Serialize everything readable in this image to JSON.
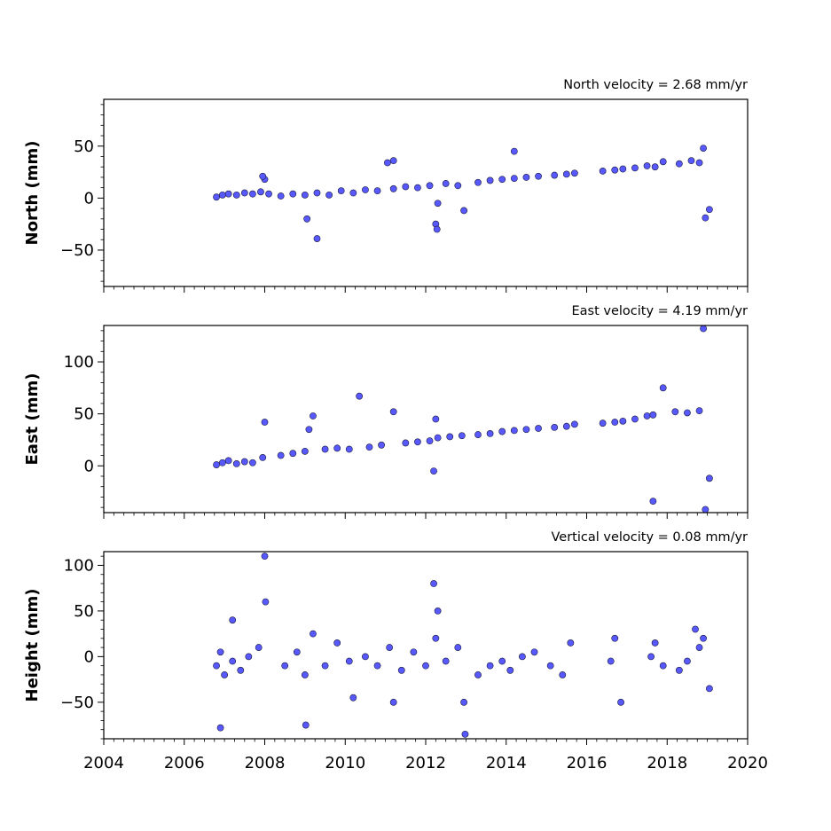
{
  "chart_data": [
    {
      "type": "scatter",
      "title": "North velocity = 2.68 mm/yr",
      "ylabel": "North (mm)",
      "xlim": [
        2004,
        2020
      ],
      "ylim": [
        -85,
        95
      ],
      "yticks": [
        -50,
        0,
        50
      ],
      "ytick_labels": [
        "−50",
        "0",
        "50"
      ],
      "point_color": "#5858ff",
      "series": [
        {
          "x": [
            2006.8,
            2006.95,
            2007.1,
            2007.3,
            2007.5,
            2007.7,
            2007.9,
            2008.0,
            2008.1,
            2008.4,
            2008.7,
            2009.0,
            2009.3,
            2009.6,
            2009.9,
            2010.2,
            2010.5,
            2010.8,
            2011.05,
            2011.2,
            2011.5,
            2011.8,
            2012.1,
            2012.25,
            2012.28,
            2012.5,
            2012.8,
            2012.95,
            2013.3,
            2013.6,
            2013.9,
            2014.2,
            2014.5,
            2014.8,
            2015.2,
            2015.5,
            2015.7,
            2016.4,
            2016.7,
            2016.9,
            2017.2,
            2017.5,
            2017.7,
            2017.9,
            2018.3,
            2018.6,
            2018.8,
            2018.9,
            2018.95,
            2019.05,
            2009.3,
            2009.05,
            2011.2,
            2014.2,
            2012.3,
            2007.95
          ]
        }
      ],
      "values": [
        1,
        3,
        4,
        3,
        5,
        4,
        6,
        18,
        4,
        2,
        4,
        3,
        5,
        3,
        7,
        5,
        8,
        7,
        34,
        9,
        11,
        10,
        12,
        -25,
        -30,
        14,
        12,
        -12,
        15,
        17,
        18,
        19,
        20,
        21,
        22,
        23,
        24,
        26,
        27,
        28,
        29,
        31,
        30,
        35,
        33,
        36,
        34,
        48,
        -19,
        -11,
        -39,
        -20,
        36,
        45,
        -5,
        21
      ]
    },
    {
      "type": "scatter",
      "title": "East velocity = 4.19 mm/yr",
      "ylabel": "East (mm)",
      "xlim": [
        2004,
        2020
      ],
      "ylim": [
        -45,
        135
      ],
      "yticks": [
        0,
        50,
        100
      ],
      "ytick_labels": [
        "0",
        "50",
        "100"
      ],
      "point_color": "#5858ff",
      "series": [
        {
          "x": [
            2006.8,
            2006.95,
            2007.1,
            2007.3,
            2007.5,
            2007.7,
            2007.95,
            2008.0,
            2008.4,
            2008.7,
            2009.0,
            2009.1,
            2009.2,
            2009.5,
            2009.8,
            2010.1,
            2010.35,
            2010.6,
            2010.9,
            2011.2,
            2011.5,
            2011.8,
            2012.1,
            2012.25,
            2012.3,
            2012.6,
            2012.9,
            2013.3,
            2013.6,
            2013.9,
            2014.2,
            2014.5,
            2014.8,
            2015.2,
            2015.5,
            2015.7,
            2016.4,
            2016.7,
            2016.9,
            2017.2,
            2017.5,
            2017.65,
            2017.9,
            2018.2,
            2018.5,
            2018.8,
            2018.9,
            2018.95,
            2019.05,
            2012.2,
            2017.65
          ]
        }
      ],
      "values": [
        1,
        3,
        5,
        2,
        4,
        3,
        8,
        42,
        10,
        12,
        14,
        35,
        48,
        16,
        17,
        16,
        67,
        18,
        20,
        52,
        22,
        23,
        24,
        45,
        27,
        28,
        29,
        30,
        31,
        33,
        34,
        35,
        36,
        37,
        38,
        40,
        41,
        42,
        43,
        45,
        48,
        49,
        75,
        52,
        51,
        53,
        132,
        -42,
        -12,
        -5,
        -34
      ]
    },
    {
      "type": "scatter",
      "title": "Vertical velocity = 0.08 mm/yr",
      "ylabel": "Height (mm)",
      "xlim": [
        2004,
        2020
      ],
      "ylim": [
        -90,
        115
      ],
      "yticks": [
        -50,
        0,
        50,
        100
      ],
      "ytick_labels": [
        "−50",
        "0",
        "50",
        "100"
      ],
      "xticks": [
        2004,
        2006,
        2008,
        2010,
        2012,
        2014,
        2016,
        2018,
        2020
      ],
      "xtick_labels": [
        "2004",
        "2006",
        "2008",
        "2010",
        "2012",
        "2014",
        "2016",
        "2018",
        "2020"
      ],
      "point_color": "#5858ff",
      "series": [
        {
          "x": [
            2006.8,
            2006.9,
            2007.0,
            2007.2,
            2007.4,
            2007.6,
            2007.85,
            2008.0,
            2008.02,
            2008.5,
            2008.8,
            2009.0,
            2009.02,
            2009.2,
            2009.5,
            2009.8,
            2010.1,
            2010.2,
            2010.5,
            2010.8,
            2011.1,
            2011.2,
            2011.4,
            2011.7,
            2012.0,
            2012.2,
            2012.25,
            2012.3,
            2012.5,
            2012.8,
            2012.95,
            2012.98,
            2013.3,
            2013.6,
            2013.9,
            2014.1,
            2014.4,
            2014.7,
            2015.1,
            2015.4,
            2015.6,
            2016.6,
            2016.7,
            2016.85,
            2017.6,
            2017.7,
            2017.9,
            2018.3,
            2018.5,
            2018.7,
            2018.8,
            2018.9,
            2019.05,
            2006.9,
            2007.2
          ]
        }
      ],
      "values": [
        -10,
        5,
        -20,
        -5,
        -15,
        0,
        10,
        110,
        60,
        -10,
        5,
        -20,
        -75,
        25,
        -10,
        15,
        -5,
        -45,
        0,
        -10,
        10,
        -50,
        -15,
        5,
        -10,
        80,
        20,
        50,
        -5,
        10,
        -50,
        -85,
        -20,
        -10,
        -5,
        -15,
        0,
        5,
        -10,
        -20,
        15,
        -5,
        20,
        -50,
        0,
        15,
        -10,
        -15,
        -5,
        30,
        10,
        20,
        -35,
        -78,
        40
      ]
    }
  ]
}
